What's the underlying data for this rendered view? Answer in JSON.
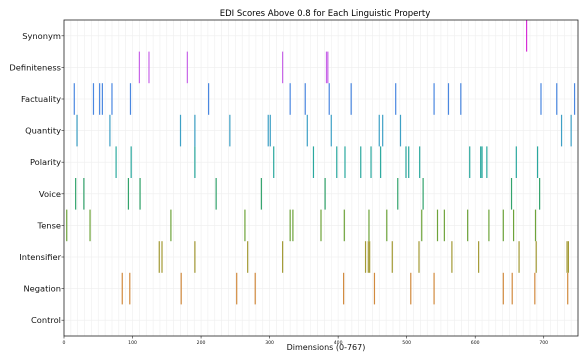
{
  "chart_data": {
    "type": "scatter",
    "title": "EDI Scores Above 0.8 for Each Linguistic Property",
    "xlabel": "Dimensions (0-767)",
    "ylabel": "",
    "xlim": [
      0,
      750
    ],
    "xticks": [
      0,
      100,
      200,
      300,
      400,
      500,
      600,
      700
    ],
    "grid": true,
    "legend": "none",
    "categories": [
      "Synonym",
      "Definiteness",
      "Factuality",
      "Quantity",
      "Polarity",
      "Voice",
      "Tense",
      "Intensifier",
      "Negation",
      "Control"
    ],
    "series": [
      {
        "category": "Synonym",
        "color": "#d62fd6",
        "x": [
          675
        ]
      },
      {
        "category": "Definiteness",
        "color": "#c866e8",
        "x": [
          110,
          124,
          180,
          319,
          383,
          385
        ]
      },
      {
        "category": "Factuality",
        "color": "#4a87e0",
        "x": [
          15,
          43,
          52,
          56,
          70,
          97,
          211,
          330,
          352,
          387,
          419,
          484,
          540,
          561,
          579,
          696,
          719,
          745
        ]
      },
      {
        "category": "Quantity",
        "color": "#3ea0c5",
        "x": [
          19,
          67,
          170,
          191,
          242,
          298,
          301,
          355,
          390,
          460,
          465,
          491,
          726,
          740
        ]
      },
      {
        "category": "Polarity",
        "color": "#2aa89e",
        "x": [
          76,
          98,
          191,
          306,
          364,
          398,
          410,
          433,
          448,
          462,
          499,
          503,
          519,
          592,
          608,
          610,
          617,
          660,
          691
        ]
      },
      {
        "category": "Voice",
        "color": "#33a36c",
        "x": [
          17,
          29,
          94,
          111,
          222,
          288,
          381,
          487,
          524,
          653,
          694
        ]
      },
      {
        "category": "Tense",
        "color": "#6da33a",
        "x": [
          4,
          38,
          156,
          264,
          330,
          334,
          375,
          409,
          445,
          471,
          522,
          545,
          555,
          589,
          620,
          641,
          656,
          688
        ]
      },
      {
        "category": "Intensifier",
        "color": "#a39a35",
        "x": [
          139,
          143,
          191,
          268,
          319,
          440,
          444,
          446,
          479,
          518,
          566,
          605,
          664,
          689,
          734,
          736
        ]
      },
      {
        "category": "Negation",
        "color": "#d18a3e",
        "x": [
          85,
          96,
          171,
          252,
          279,
          408,
          453,
          506,
          540,
          641,
          654,
          687,
          735
        ]
      },
      {
        "category": "Control",
        "color": "#e07e72",
        "x": []
      }
    ]
  }
}
